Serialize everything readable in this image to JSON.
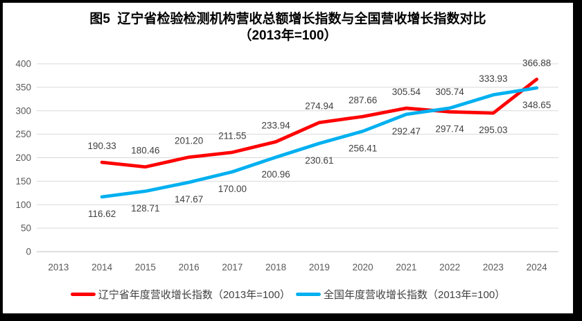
{
  "title": {
    "line1": "图5  辽宁省检验检测机构营收总额增长指数与全国营收增长指数对比",
    "line2": "（2013年=100）"
  },
  "chart_data": {
    "type": "line",
    "categories": [
      "2013",
      "2014",
      "2015",
      "2016",
      "2017",
      "2018",
      "2019",
      "2020",
      "2021",
      "2022",
      "2023",
      "2024"
    ],
    "series": [
      {
        "key": "liaoning",
        "name": "辽宁省年度营收增长指数（2013年=100）",
        "color": "#ff0000",
        "values": [
          null,
          190.33,
          180.46,
          201.2,
          211.55,
          233.94,
          274.94,
          287.66,
          305.54,
          297.74,
          295.03,
          366.88
        ],
        "labels": [
          null,
          "190.33",
          "180.46",
          "201.20",
          "211.55",
          "233.94",
          "274.94",
          "287.66",
          "305.54",
          "297.74",
          "295.03",
          "366.88"
        ],
        "label_side": [
          null,
          "above",
          "above",
          "above",
          "above",
          "above",
          "above",
          "above",
          "above",
          "below",
          "below",
          "above"
        ]
      },
      {
        "key": "national",
        "name": "全国年度营收增长指数（2013年=100）",
        "color": "#00b0f0",
        "values": [
          null,
          116.62,
          128.71,
          147.67,
          170.0,
          200.96,
          230.61,
          256.41,
          292.47,
          305.74,
          333.93,
          348.65
        ],
        "labels": [
          null,
          "116.62",
          "128.71",
          "147.67",
          "170.00",
          "200.96",
          "230.61",
          "256.41",
          "292.47",
          "305.74",
          "333.93",
          "348.65"
        ],
        "label_side": [
          null,
          "below",
          "below",
          "below",
          "below",
          "below",
          "below",
          "below",
          "below",
          "above",
          "above",
          "below"
        ]
      }
    ],
    "yticks": [
      "0",
      "50",
      "100",
      "150",
      "200",
      "250",
      "300",
      "350",
      "400"
    ],
    "ylim": [
      0,
      400
    ],
    "ytick_step": 50,
    "xlabel": "",
    "ylabel": "",
    "grid": true,
    "legend_position": "bottom"
  },
  "style": {
    "grid_color": "#d9d9d9",
    "axis_zero_line_color": "#bfbfbf",
    "tick_label_color": "#595959",
    "data_label_color": "#3f3f3f",
    "title_color": "#000000",
    "panel_background": "#ffffff",
    "frame_color": "#000000"
  }
}
